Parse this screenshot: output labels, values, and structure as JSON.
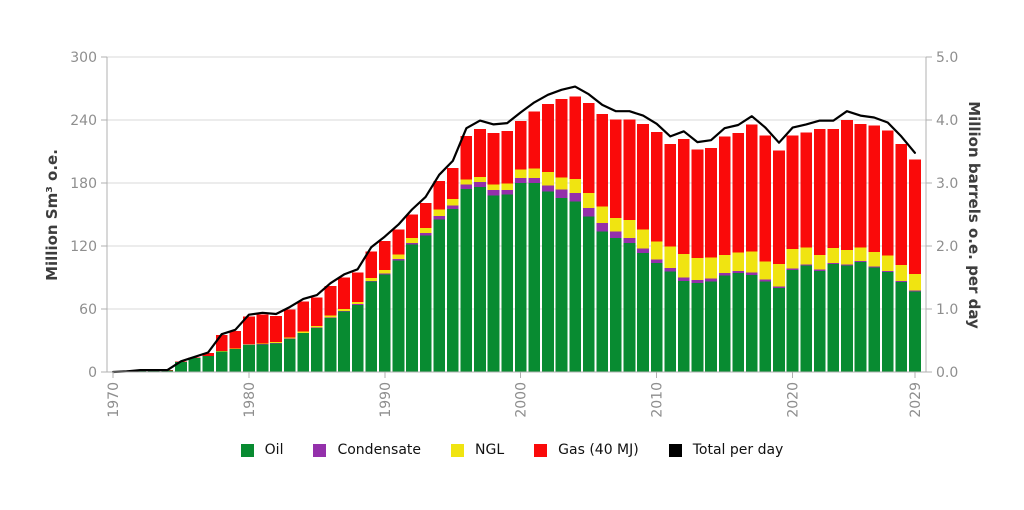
{
  "chart_data": {
    "type": "bar",
    "stacked": true,
    "title": "",
    "xlabel": "",
    "ylabel_left": "Million Sm³ o.e.",
    "ylabel_right": "Million barrels o.e. per day",
    "ylim_left": [
      0,
      300
    ],
    "ylim_right": [
      0,
      5
    ],
    "y_left_tick_labels": [
      "0",
      "60",
      "120",
      "180",
      "240",
      "300"
    ],
    "y_left_tick_values": [
      0,
      60,
      120,
      180,
      240,
      300
    ],
    "y_right_tick_labels": [
      "0.0",
      "1.0",
      "2.0",
      "3.0",
      "4.0",
      "5.0"
    ],
    "y_right_tick_values": [
      0,
      1,
      2,
      3,
      4,
      5
    ],
    "x_tick_labels": [
      "1970",
      "1980",
      "1990",
      "2000",
      "2010",
      "2020",
      "2029"
    ],
    "x_tick_years": [
      1970,
      1980,
      1990,
      2000,
      2010,
      2020,
      2029
    ],
    "grid": true,
    "legend_position": "bottom",
    "categories": [
      1970,
      1971,
      1972,
      1973,
      1974,
      1975,
      1976,
      1977,
      1978,
      1979,
      1980,
      1981,
      1982,
      1983,
      1984,
      1985,
      1986,
      1987,
      1988,
      1989,
      1990,
      1991,
      1992,
      1993,
      1994,
      1995,
      1996,
      1997,
      1998,
      1999,
      2000,
      2001,
      2002,
      2003,
      2004,
      2005,
      2006,
      2007,
      2008,
      2009,
      2010,
      2011,
      2012,
      2013,
      2014,
      2015,
      2016,
      2017,
      2018,
      2019,
      2020,
      2021,
      2022,
      2023,
      2024,
      2025,
      2026,
      2027,
      2028,
      2029
    ],
    "series": [
      {
        "name": "Oil",
        "color": "#088b31",
        "values": [
          0,
          0.3,
          1.6,
          1.6,
          1.7,
          9.8,
          13.5,
          15.4,
          20.0,
          22.0,
          26.0,
          26.5,
          27.5,
          31.5,
          37.0,
          42.0,
          51.5,
          57.5,
          64.0,
          86.0,
          92.9,
          106.2,
          121.4,
          130.0,
          145.2,
          155.4,
          174.4,
          176.3,
          168.1,
          169.0,
          180.2,
          180.0,
          172.0,
          165.7,
          162.5,
          148.2,
          133.9,
          127.5,
          122.7,
          113.2,
          103.7,
          95.7,
          86.8,
          84.6,
          86.2,
          91.9,
          94.1,
          92.5,
          86.2,
          79.8,
          97.3,
          101.4,
          96.3,
          102.7,
          101.4,
          104.6,
          99.5,
          95.1,
          85.5,
          76.6
        ]
      },
      {
        "name": "Condensate",
        "color": "#9430ab",
        "values": [
          0,
          0,
          0,
          0,
          0,
          0,
          0,
          0,
          0,
          0,
          0.1,
          0.1,
          0.1,
          0.2,
          0.3,
          0.4,
          0.5,
          0.6,
          0.7,
          0.8,
          1.0,
          1.2,
          1.5,
          2.5,
          3.2,
          3.2,
          4.2,
          4.5,
          5.1,
          4.2,
          4.5,
          5.0,
          5.5,
          7.9,
          7.9,
          7.9,
          7.9,
          6.4,
          4.8,
          4.5,
          3.5,
          3.5,
          3.2,
          3.2,
          3.0,
          2.5,
          2.2,
          2.2,
          2.0,
          1.8,
          1.5,
          1.2,
          1.2,
          1.2,
          1.2,
          1.2,
          1.2,
          1.2,
          1.2,
          1.2
        ]
      },
      {
        "name": "NGL",
        "color": "#f0e411",
        "values": [
          0,
          0,
          0,
          0,
          0,
          0,
          0,
          0,
          0.1,
          0.4,
          0.6,
          0.7,
          0.8,
          1.0,
          1.3,
          1.6,
          1.7,
          1.8,
          2.0,
          2.5,
          3.1,
          4.5,
          4.7,
          4.8,
          6.4,
          6.3,
          4.7,
          5.1,
          5.4,
          6.3,
          8.2,
          9.0,
          13.0,
          11.8,
          13.4,
          14.3,
          15.9,
          12.8,
          17.5,
          17.8,
          17.1,
          20.4,
          22.2,
          20.6,
          19.8,
          17.2,
          17.5,
          20.1,
          17.0,
          21.1,
          18.2,
          16.0,
          14.1,
          14.1,
          13.8,
          12.8,
          13.4,
          14.7,
          15.4,
          15.4
        ]
      },
      {
        "name": "Gas (40 MJ)",
        "color": "#fa0a0a",
        "values": [
          0,
          0,
          0.1,
          0.1,
          0.1,
          0.3,
          0.3,
          2.7,
          15.0,
          16.5,
          26.0,
          27.5,
          25.0,
          27.0,
          28.5,
          27.0,
          28.0,
          30.0,
          28.0,
          25.5,
          27.6,
          23.8,
          22.4,
          23.8,
          26.9,
          29.5,
          41.3,
          45.7,
          49.2,
          49.9,
          46.0,
          54.3,
          64.8,
          74.7,
          78.8,
          85.6,
          88.1,
          93.7,
          95.4,
          100.8,
          104.3,
          97.6,
          109.7,
          103.4,
          104.3,
          112.9,
          113.9,
          120.8,
          119.9,
          108.4,
          108.1,
          109.7,
          119.9,
          113.5,
          123.7,
          117.7,
          120.6,
          118.9,
          115.1,
          109.0
        ]
      }
    ],
    "line_series": {
      "name": "Total per day",
      "color": "#000000",
      "axis": "right",
      "values": [
        0.0,
        0.01,
        0.03,
        0.03,
        0.03,
        0.17,
        0.24,
        0.31,
        0.6,
        0.67,
        0.91,
        0.94,
        0.92,
        1.03,
        1.16,
        1.22,
        1.41,
        1.55,
        1.63,
        1.98,
        2.15,
        2.34,
        2.58,
        2.78,
        3.13,
        3.35,
        3.87,
        3.99,
        3.93,
        3.95,
        4.12,
        4.28,
        4.4,
        4.48,
        4.53,
        4.41,
        4.24,
        4.14,
        4.14,
        4.07,
        3.94,
        3.74,
        3.82,
        3.65,
        3.68,
        3.87,
        3.92,
        4.06,
        3.88,
        3.64,
        3.88,
        3.93,
        3.99,
        3.99,
        4.14,
        4.07,
        4.04,
        3.96,
        3.74,
        3.48
      ]
    },
    "legend_items": [
      "Oil",
      "Condensate",
      "NGL",
      "Gas (40 MJ)",
      "Total per day"
    ]
  },
  "style_colors": {
    "grid": "#d9d9d9",
    "spine": "#b0b0b0",
    "tick_label": "#8e8e8e",
    "axis_title": "#3d3d3d",
    "legend_text": "#111111",
    "background": "#ffffff"
  }
}
